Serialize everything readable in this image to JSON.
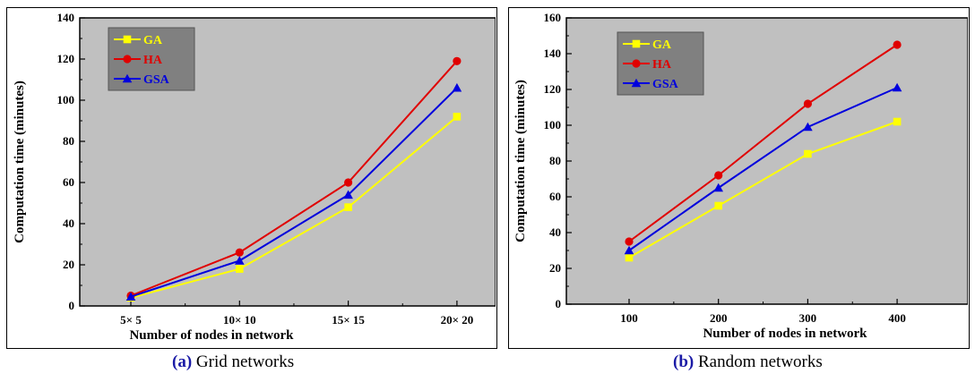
{
  "chart_data": [
    {
      "type": "line",
      "caption_tag": "(a)",
      "caption_text": " Grid networks",
      "categories": [
        "5× 5",
        "10× 10",
        "15× 15",
        "20× 20"
      ],
      "series": [
        {
          "name": "GA",
          "values": [
            4,
            18,
            48,
            92
          ],
          "color": "#ffff00",
          "marker": "square"
        },
        {
          "name": "HA",
          "values": [
            5,
            26,
            60,
            119
          ],
          "color": "#e00000",
          "marker": "circle"
        },
        {
          "name": "GSA",
          "values": [
            4.5,
            22,
            54,
            106
          ],
          "color": "#0000dd",
          "marker": "triangle"
        }
      ],
      "xlabel": "Number of nodes in network",
      "ylabel": "Computation time (minutes)",
      "ylim": [
        0,
        140
      ],
      "yticks": [
        0,
        20,
        40,
        60,
        80,
        100,
        120,
        140
      ],
      "grid": false,
      "legend": "top-left"
    },
    {
      "type": "line",
      "caption_tag": "(b)",
      "caption_text": " Random networks",
      "categories": [
        "100",
        "200",
        "300",
        "400"
      ],
      "series": [
        {
          "name": "GA",
          "values": [
            26,
            55,
            84,
            102
          ],
          "color": "#ffff00",
          "marker": "square"
        },
        {
          "name": "HA",
          "values": [
            35,
            72,
            112,
            145
          ],
          "color": "#e00000",
          "marker": "circle"
        },
        {
          "name": "GSA",
          "values": [
            30,
            65,
            99,
            121
          ],
          "color": "#0000dd",
          "marker": "triangle"
        }
      ],
      "xlabel": "Number of nodes in network",
      "ylabel": "Computation time (minutes)",
      "ylim": [
        0,
        160
      ],
      "yticks": [
        0,
        20,
        40,
        60,
        80,
        100,
        120,
        140,
        160
      ],
      "grid": false,
      "legend": "top-left"
    }
  ]
}
